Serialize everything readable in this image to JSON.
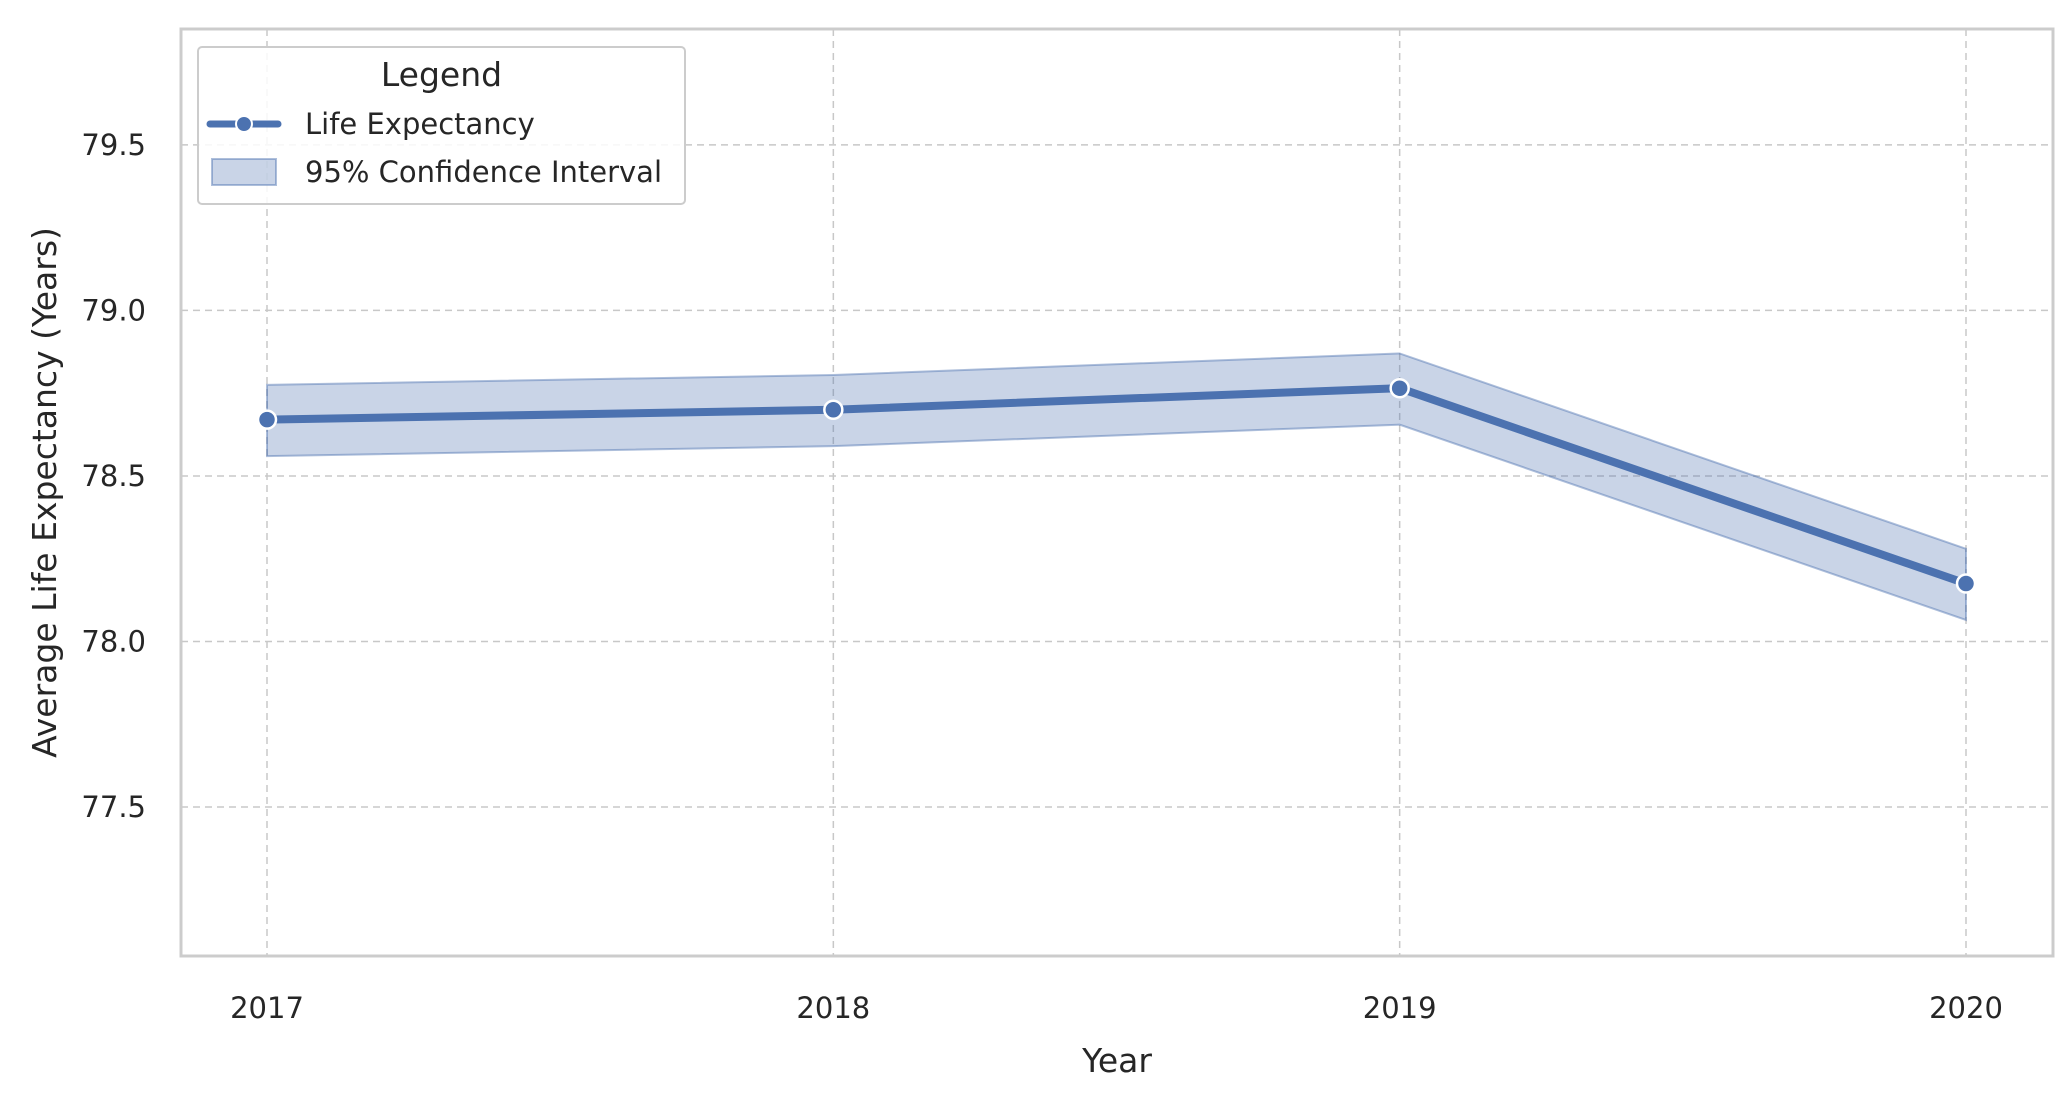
{
  "chart_data": {
    "type": "line",
    "title": "",
    "xlabel": "Year",
    "ylabel": "Average Life Expectancy (Years)",
    "x": [
      "2017",
      "2018",
      "2019",
      "2020"
    ],
    "series": [
      {
        "name": "Life Expectancy",
        "values": [
          78.67,
          78.7,
          78.765,
          78.175
        ],
        "ci_lower": [
          78.56,
          78.59,
          78.655,
          78.065
        ],
        "ci_upper": [
          78.775,
          78.805,
          78.87,
          78.28
        ]
      }
    ],
    "band_name": "95% Confidence Interval",
    "ylim": [
      77.05,
      79.85
    ],
    "yticks": [
      "77.5",
      "78.0",
      "78.5",
      "79.0",
      "79.5"
    ],
    "grid": true,
    "grid_style": "dashed",
    "legend": {
      "title": "Legend",
      "placement": "top-left"
    },
    "colors": {
      "line": "#4c72b0",
      "band": "#4c72b0",
      "grid": "#c8c8c8",
      "frame": "#cccccc"
    }
  }
}
